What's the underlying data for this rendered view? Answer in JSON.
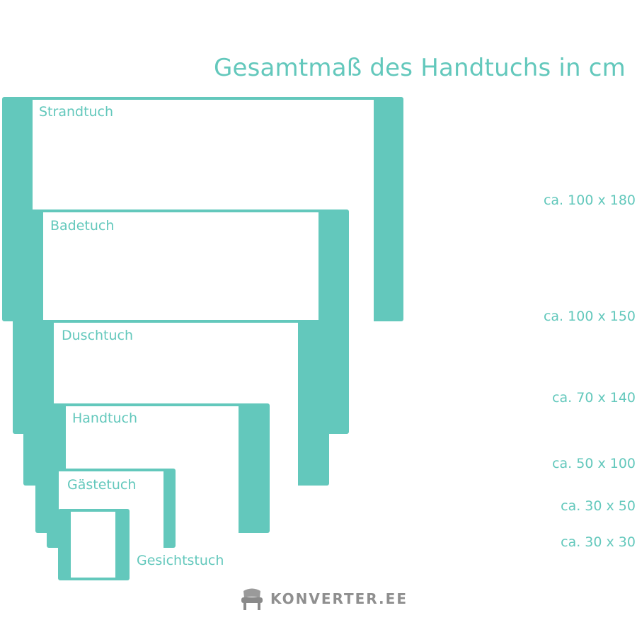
{
  "title": "Gesamtmaß des Handtuchs in cm",
  "towels": [
    {
      "name": "Strandtuch",
      "size": "ca. 100 x 180"
    },
    {
      "name": "Badetuch",
      "size": "ca. 100 x 150"
    },
    {
      "name": "Duschtuch",
      "size": "ca. 70 x 140"
    },
    {
      "name": "Handtuch",
      "size": "ca. 50 x 100"
    },
    {
      "name": "Gästetuch",
      "size": "ca. 30 x 50"
    },
    {
      "name": "Gesichtstuch",
      "size": "ca. 30 x 30"
    }
  ],
  "logo": {
    "text": "KONVERTER.EE",
    "icon": "chair-icon"
  },
  "colors": {
    "accent": "#63c8bc",
    "logo_gray": "#8f8f8f"
  }
}
